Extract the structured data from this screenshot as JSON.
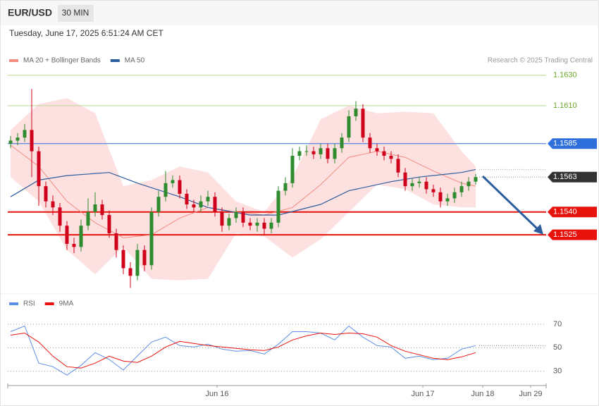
{
  "header": {
    "symbol": "EUR/USD",
    "interval": "30 MIN",
    "timestamp": "Tuesday, June 17, 2025 6:51:24 AM CET",
    "credit": "Research © 2025 Trading Central"
  },
  "chart_data": [
    {
      "type": "candlestick",
      "xlim": [
        0,
        76
      ],
      "ylim": [
        1.1487,
        1.1661
      ],
      "up_color": "#2e8b2e",
      "down_color": "#d0021b",
      "x": [
        0,
        1,
        2,
        3,
        4,
        5,
        6,
        7,
        8,
        9,
        10,
        11,
        12,
        13,
        14,
        15,
        16,
        17,
        18,
        19,
        20,
        21,
        22,
        23,
        24,
        25,
        26,
        27,
        28,
        29,
        30,
        31,
        32,
        33,
        34,
        35,
        36,
        37,
        38,
        39,
        40,
        41,
        42,
        43,
        44,
        45,
        46,
        47,
        48,
        49,
        50,
        51,
        52,
        53,
        54,
        55,
        56,
        57,
        58,
        59,
        60,
        61,
        62,
        63,
        64,
        65,
        66
      ],
      "open": [
        1.1585,
        1.1587,
        1.1589,
        1.1594,
        1.158,
        1.1557,
        1.1547,
        1.1543,
        1.1531,
        1.1519,
        1.1517,
        1.1531,
        1.154,
        1.1545,
        1.1538,
        1.1526,
        1.1515,
        1.1503,
        1.1498,
        1.1515,
        1.1505,
        1.154,
        1.155,
        1.1559,
        1.1561,
        1.1552,
        1.1545,
        1.1543,
        1.1547,
        1.155,
        1.154,
        1.1531,
        1.1536,
        1.154,
        1.1533,
        1.1531,
        1.1533,
        1.1529,
        1.1533,
        1.1554,
        1.1559,
        1.1577,
        1.158,
        1.158,
        1.1578,
        1.1582,
        1.1575,
        1.1582,
        1.1589,
        1.1603,
        1.1608,
        1.1589,
        1.1582,
        1.158,
        1.1577,
        1.1575,
        1.1566,
        1.1557,
        1.1559,
        1.156,
        1.1555,
        1.1553,
        1.1547,
        1.1549,
        1.1553,
        1.1557,
        1.156
      ],
      "high": [
        1.159,
        1.1592,
        1.1598,
        1.1621,
        1.1583,
        1.156,
        1.1551,
        1.1546,
        1.1534,
        1.1523,
        1.1535,
        1.1549,
        1.1553,
        1.1548,
        1.1541,
        1.1529,
        1.1518,
        1.1507,
        1.1519,
        1.1518,
        1.1543,
        1.1554,
        1.1567,
        1.1564,
        1.1564,
        1.1555,
        1.1548,
        1.1551,
        1.1554,
        1.1553,
        1.1543,
        1.1539,
        1.1543,
        1.1543,
        1.1536,
        1.1536,
        1.1536,
        1.1536,
        1.1557,
        1.1563,
        1.1582,
        1.1583,
        1.1584,
        1.1583,
        1.1585,
        1.1585,
        1.1585,
        1.1592,
        1.1607,
        1.1613,
        1.1611,
        1.1592,
        1.1585,
        1.1583,
        1.158,
        1.1578,
        1.1569,
        1.1562,
        1.1563,
        1.1563,
        1.1558,
        1.1556,
        1.1552,
        1.1556,
        1.156,
        1.1563,
        1.1565
      ],
      "low": [
        1.1582,
        1.1584,
        1.1586,
        1.1563,
        1.1544,
        1.1543,
        1.1538,
        1.1527,
        1.1515,
        1.1513,
        1.1514,
        1.1528,
        1.1537,
        1.1535,
        1.1523,
        1.151,
        1.1499,
        1.149,
        1.1495,
        1.1501,
        1.1502,
        1.1537,
        1.1547,
        1.1556,
        1.1549,
        1.1542,
        1.154,
        1.154,
        1.1544,
        1.1537,
        1.1527,
        1.1528,
        1.1533,
        1.153,
        1.1528,
        1.1527,
        1.1525,
        1.1526,
        1.153,
        1.1551,
        1.1556,
        1.1574,
        1.1577,
        1.1575,
        1.1575,
        1.1572,
        1.1572,
        1.1579,
        1.1586,
        1.16,
        1.1586,
        1.1579,
        1.1577,
        1.1574,
        1.1572,
        1.1563,
        1.1554,
        1.1554,
        1.1556,
        1.1552,
        1.155,
        1.1543,
        1.1544,
        1.1546,
        1.155,
        1.1554,
        1.1558
      ],
      "close": [
        1.1587,
        1.1589,
        1.1594,
        1.158,
        1.1557,
        1.1547,
        1.1543,
        1.1531,
        1.1519,
        1.1517,
        1.1531,
        1.154,
        1.1545,
        1.1538,
        1.1526,
        1.1515,
        1.1503,
        1.1498,
        1.1515,
        1.1505,
        1.154,
        1.155,
        1.1559,
        1.1561,
        1.1552,
        1.1545,
        1.1543,
        1.1547,
        1.155,
        1.154,
        1.1531,
        1.1536,
        1.154,
        1.1533,
        1.1531,
        1.1533,
        1.1529,
        1.1533,
        1.1554,
        1.1559,
        1.1577,
        1.158,
        1.158,
        1.1578,
        1.1582,
        1.1575,
        1.1582,
        1.1589,
        1.1603,
        1.1608,
        1.1589,
        1.1582,
        1.158,
        1.1577,
        1.1575,
        1.1566,
        1.1557,
        1.1559,
        1.156,
        1.1555,
        1.1553,
        1.1547,
        1.1549,
        1.1553,
        1.1557,
        1.156,
        1.1563
      ],
      "series": [
        {
          "name": "MA 20 + Bollinger Bands",
          "color": "#f28b82",
          "band_color": "#fde0e0",
          "x": [
            0,
            4,
            8,
            12,
            16,
            20,
            24,
            28,
            32,
            36,
            40,
            44,
            48,
            52,
            56,
            60,
            64,
            66
          ],
          "values": [
            1.1584,
            1.157,
            1.1547,
            1.1533,
            1.1523,
            1.1525,
            1.1536,
            1.1543,
            1.154,
            1.1538,
            1.1543,
            1.1558,
            1.1576,
            1.158,
            1.1576,
            1.1567,
            1.1559,
            1.1557
          ],
          "upper": [
            1.1594,
            1.1611,
            1.1615,
            1.1605,
            1.1557,
            1.1561,
            1.157,
            1.1566,
            1.1547,
            1.154,
            1.1563,
            1.1601,
            1.161,
            1.1605,
            1.1606,
            1.1605,
            1.158,
            1.157
          ],
          "lower": [
            1.1563,
            1.1547,
            1.1515,
            1.1499,
            1.1517,
            1.1496,
            1.1495,
            1.1496,
            1.1526,
            1.1524,
            1.151,
            1.1522,
            1.154,
            1.1558,
            1.1555,
            1.1545,
            1.1543,
            1.1543
          ]
        },
        {
          "name": "MA 50",
          "color": "#2c5d9e",
          "x": [
            0,
            4,
            8,
            14,
            18,
            24,
            28,
            34,
            38,
            44,
            48,
            54,
            58,
            64,
            66
          ],
          "values": [
            1.155,
            1.1561,
            1.1564,
            1.1566,
            1.1559,
            1.155,
            1.1543,
            1.1538,
            1.1538,
            1.1545,
            1.1554,
            1.156,
            1.1563,
            1.1566,
            1.1568
          ]
        }
      ],
      "levels": [
        {
          "value": 1.163,
          "label": "1.1630",
          "color": "#6aa828",
          "line": true,
          "boxed": false
        },
        {
          "value": 1.161,
          "label": "1.1610",
          "color": "#6aa828",
          "line": true,
          "boxed": false
        },
        {
          "value": 1.1585,
          "label": "1.1585",
          "color": "#2f6fdc",
          "line": true,
          "boxed": true
        },
        {
          "value": 1.1563,
          "label": "1.1563",
          "color": "#333333",
          "line": false,
          "boxed": true
        },
        {
          "value": 1.154,
          "label": "1.1540",
          "color": "#e8120c",
          "line": true,
          "boxed": true
        },
        {
          "value": 1.1525,
          "label": "1.1525",
          "color": "#e8120c",
          "line": true,
          "boxed": true
        }
      ]
    },
    {
      "type": "line",
      "xlim": [
        0,
        76
      ],
      "ylim": [
        19,
        82
      ],
      "yticks": [
        30,
        50,
        70
      ],
      "grid": true,
      "xticks": [
        {
          "value": 29.3,
          "label": "Jun 16"
        },
        {
          "value": 58.5,
          "label": "Jun 17"
        },
        {
          "value": 67,
          "label": "Jun 18"
        },
        {
          "value": 73.8,
          "label": "Jun 29"
        }
      ],
      "series": [
        {
          "name": "RSI",
          "color": "#5b8ee6",
          "x": [
            0,
            2,
            4,
            6,
            8,
            10,
            12,
            14,
            16,
            18,
            20,
            22,
            24,
            26,
            28,
            30,
            32,
            34,
            36,
            38,
            40,
            42,
            44,
            46,
            48,
            50,
            52,
            54,
            56,
            58,
            60,
            62,
            64,
            66
          ],
          "values": [
            63.7,
            68.5,
            36.9,
            33.9,
            26.7,
            35,
            45.8,
            40,
            31,
            43,
            54.8,
            59,
            51.8,
            50.6,
            53,
            48.8,
            47,
            47.6,
            44.6,
            53,
            63.7,
            63.7,
            62.5,
            56.6,
            68.5,
            59,
            51.8,
            50.6,
            41,
            42.8,
            39.9,
            41,
            48.8,
            51.8
          ]
        },
        {
          "name": "9MA",
          "color": "#e8120c",
          "x": [
            0,
            2,
            4,
            6,
            8,
            10,
            12,
            14,
            16,
            18,
            20,
            22,
            24,
            26,
            28,
            30,
            32,
            34,
            36,
            38,
            40,
            42,
            44,
            46,
            48,
            50,
            52,
            54,
            56,
            58,
            60,
            62,
            64,
            66
          ],
          "values": [
            60.7,
            62.5,
            54.8,
            42.8,
            33.9,
            32.7,
            36.9,
            42.8,
            38.7,
            37.5,
            42.8,
            50.6,
            55.4,
            53.6,
            51.8,
            50.6,
            49.4,
            48.2,
            47.6,
            50.6,
            56.6,
            60.1,
            62.5,
            61.3,
            62.5,
            61.9,
            59,
            51.8,
            47,
            44,
            41,
            39.9,
            42.2,
            45.8
          ]
        }
      ]
    }
  ]
}
